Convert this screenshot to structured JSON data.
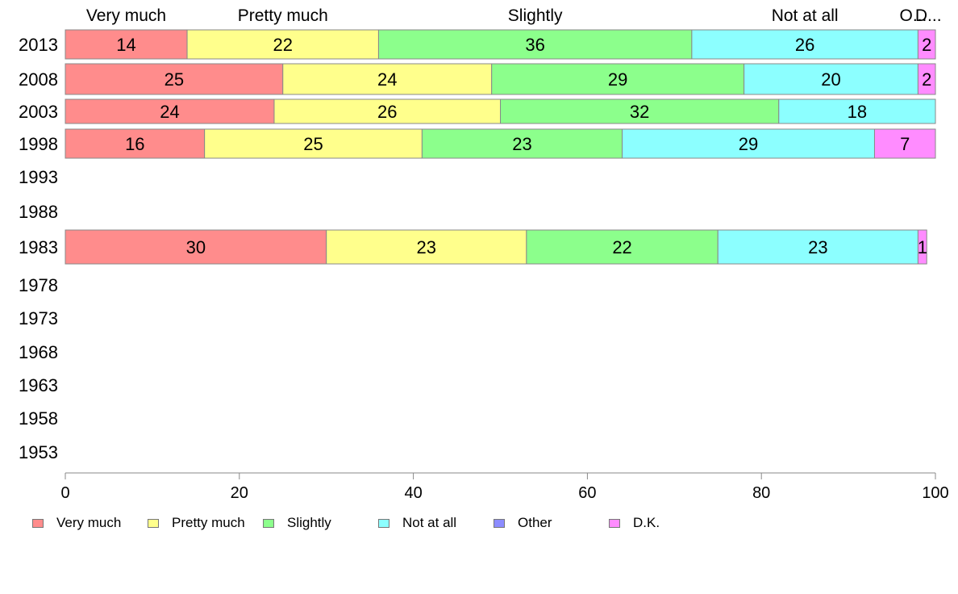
{
  "chart_data": {
    "type": "bar",
    "orientation": "horizontal",
    "stacked": true,
    "title": "",
    "xlabel": "",
    "ylabel": "",
    "xlim": [
      0,
      100
    ],
    "x_ticks": [
      "0",
      "20",
      "40",
      "60",
      "80",
      "100"
    ],
    "categories": [
      "2013",
      "2008",
      "2003",
      "1998",
      "1993",
      "1988",
      "1983",
      "1978",
      "1973",
      "1968",
      "1963",
      "1958",
      "1953"
    ],
    "series": [
      {
        "name": "Very much",
        "color": "#ff8c8c",
        "values": [
          14,
          25,
          24,
          16,
          null,
          null,
          30,
          null,
          null,
          null,
          null,
          null,
          null
        ]
      },
      {
        "name": "Pretty much",
        "color": "#ffff8c",
        "values": [
          22,
          24,
          26,
          25,
          null,
          null,
          23,
          null,
          null,
          null,
          null,
          null,
          null
        ]
      },
      {
        "name": "Slightly",
        "color": "#8cff8c",
        "values": [
          36,
          29,
          32,
          23,
          null,
          null,
          22,
          null,
          null,
          null,
          null,
          null,
          null
        ]
      },
      {
        "name": "Not at all",
        "color": "#8cffff",
        "values": [
          26,
          20,
          18,
          29,
          null,
          null,
          23,
          null,
          null,
          null,
          null,
          null,
          null
        ]
      },
      {
        "name": "Other",
        "color": "#8c8cff",
        "values": [
          0,
          0,
          0,
          0,
          null,
          null,
          0,
          null,
          null,
          null,
          null,
          null,
          null
        ]
      },
      {
        "name": "D.K.",
        "color": "#ff8cff",
        "values": [
          2,
          2,
          0,
          7,
          null,
          null,
          1,
          null,
          null,
          null,
          null,
          null,
          null
        ]
      }
    ],
    "top_labels": [
      "Very much",
      "Pretty much",
      "Slightly",
      "Not at all",
      "O...",
      "D..."
    ],
    "grid": false,
    "legend_position": "bottom-left"
  }
}
